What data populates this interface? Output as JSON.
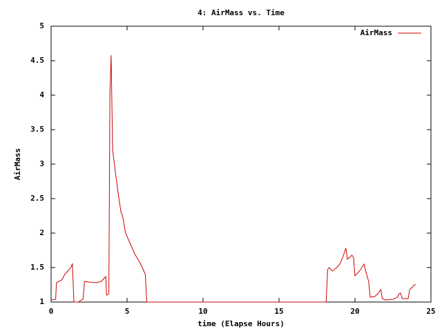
{
  "chart_data": {
    "type": "line",
    "title": "4: AirMass vs. Time",
    "x_label": "time (Elapse Hours)",
    "y_label": "AirMass",
    "legend": "top right",
    "xlim": [
      0,
      25
    ],
    "xticks": [
      0,
      5,
      10,
      15,
      20,
      25
    ],
    "ylim": [
      1,
      5
    ],
    "yticks": [
      1,
      1.5,
      2,
      2.5,
      3,
      3.5,
      4,
      4.5,
      5
    ],
    "series": [
      {
        "name": "AirMass",
        "color": "#cc0000",
        "x": [
          0,
          0.3,
          0.35,
          0.7,
          0.9,
          1.1,
          1.3,
          1.4,
          1.5,
          1.8,
          2.0,
          2.1,
          2.2,
          2.5,
          3.0,
          3.3,
          3.6,
          3.65,
          3.8,
          3.87,
          3.95,
          4.05,
          4.4,
          4.6,
          4.7,
          4.9,
          5.2,
          5.5,
          5.9,
          6.2,
          6.3,
          18.1,
          18.2,
          18.3,
          18.5,
          18.8,
          19.0,
          19.2,
          19.4,
          19.5,
          19.8,
          19.9,
          20.0,
          20.3,
          20.6,
          20.7,
          20.9,
          21.0,
          21.3,
          21.5,
          21.7,
          21.8,
          22.0,
          22.5,
          22.8,
          22.9,
          23.0,
          23.1,
          23.5,
          23.6,
          23.8,
          23.9,
          24.0
        ],
        "values": [
          1.03,
          1.04,
          1.28,
          1.32,
          1.4,
          1.45,
          1.5,
          1.56,
          1.0,
          1.0,
          1.03,
          1.04,
          1.3,
          1.29,
          1.28,
          1.3,
          1.37,
          1.1,
          1.12,
          4.0,
          4.58,
          3.2,
          2.6,
          2.3,
          2.25,
          2.0,
          1.85,
          1.7,
          1.55,
          1.4,
          1.0,
          1.0,
          1.47,
          1.5,
          1.45,
          1.5,
          1.55,
          1.65,
          1.78,
          1.62,
          1.68,
          1.65,
          1.38,
          1.45,
          1.55,
          1.45,
          1.3,
          1.07,
          1.08,
          1.12,
          1.18,
          1.05,
          1.03,
          1.04,
          1.07,
          1.12,
          1.13,
          1.05,
          1.05,
          1.18,
          1.22,
          1.25,
          1.25
        ]
      }
    ]
  }
}
